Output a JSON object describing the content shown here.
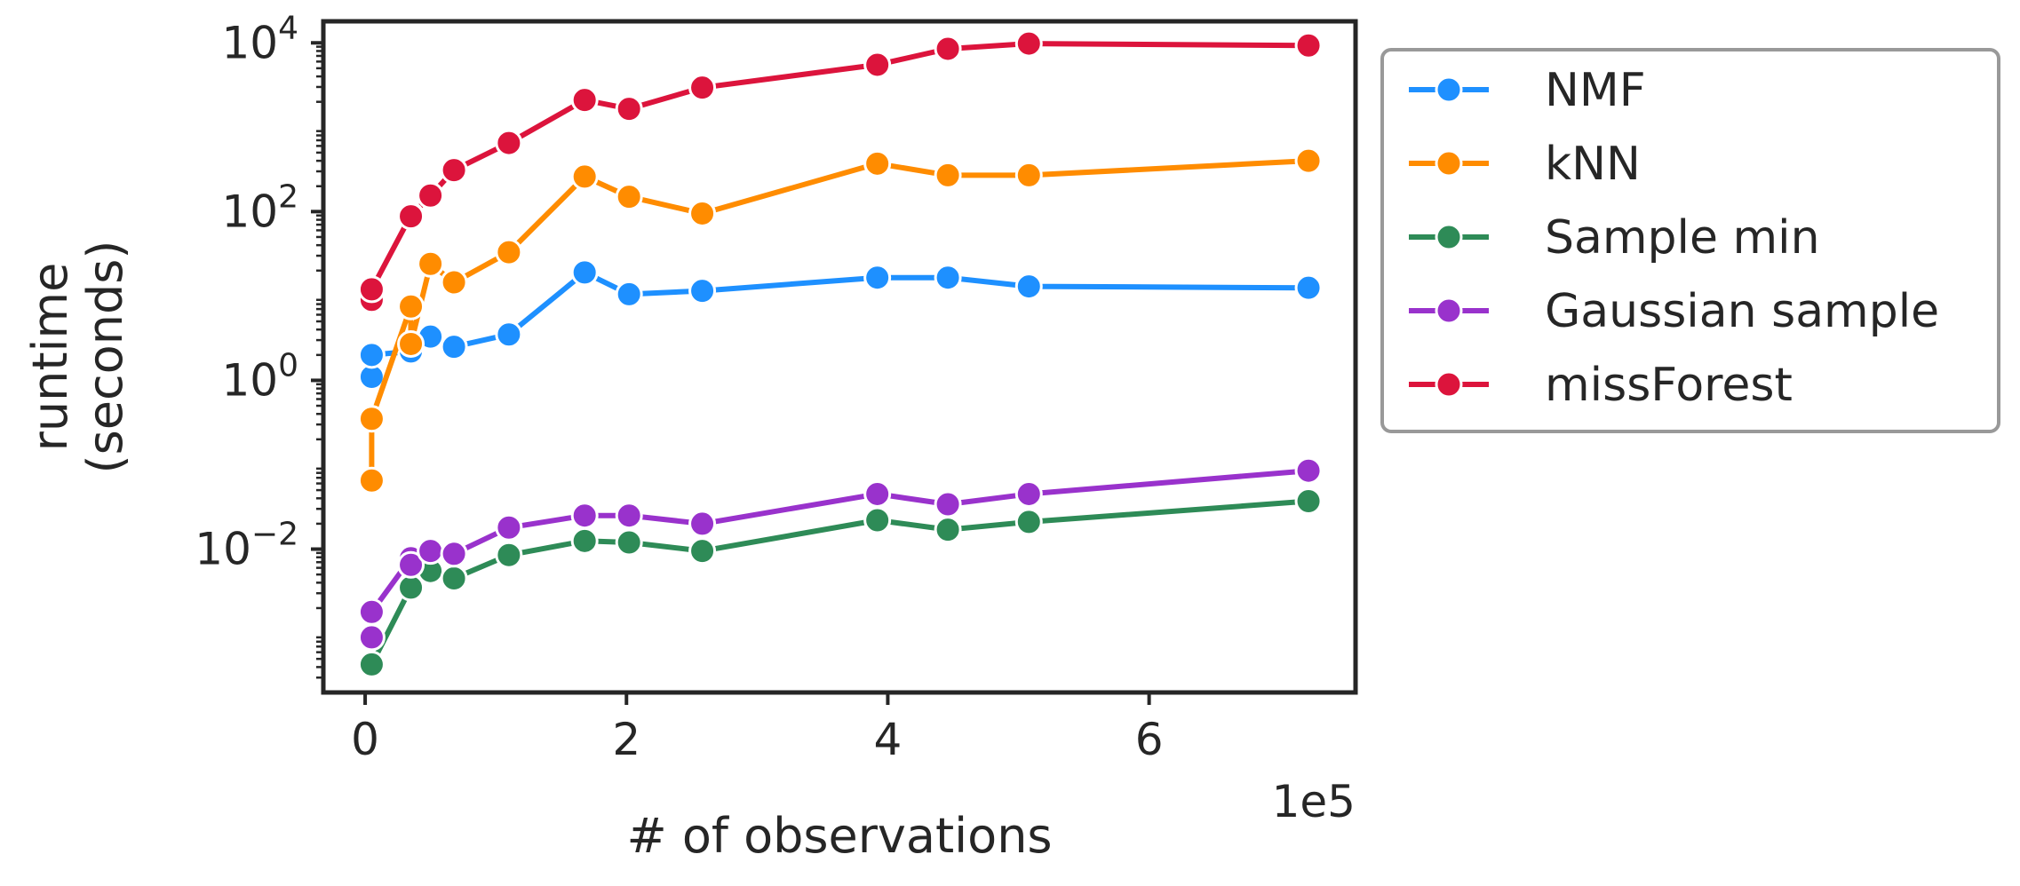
{
  "chart_data": {
    "type": "line",
    "title": "",
    "xlabel": "# of observations",
    "ylabel": [
      "runtime",
      "(seconds)"
    ],
    "x_offset_label": "1e5",
    "x_ticks": [
      {
        "value": 0,
        "label": "0"
      },
      {
        "value": 200000,
        "label": "2"
      },
      {
        "value": 400000,
        "label": "4"
      },
      {
        "value": 600000,
        "label": "6"
      }
    ],
    "y_scale": "log",
    "y_ticks": [
      {
        "value": 0.01,
        "base": "10",
        "exp": "−2"
      },
      {
        "value": 1,
        "base": "10",
        "exp": "0"
      },
      {
        "value": 100,
        "base": "10",
        "exp": "2"
      },
      {
        "value": 10000,
        "base": "10",
        "exp": "4"
      }
    ],
    "xlim": [
      -32000,
      758000
    ],
    "ylim": [
      0.0002,
      18000
    ],
    "grid": false,
    "legend_position": "outside-right",
    "marker": "circle",
    "series": [
      {
        "name": "NMF",
        "color": "#1e90ff",
        "points": [
          [
            5000,
            1.1
          ],
          [
            5000,
            2.0
          ],
          [
            35000,
            2.2
          ],
          [
            50000,
            3.3
          ],
          [
            68000,
            2.5
          ],
          [
            110000,
            3.5
          ],
          [
            168000,
            19
          ],
          [
            202000,
            10.5
          ],
          [
            258000,
            11.5
          ],
          [
            392000,
            16.5
          ],
          [
            446000,
            16.5
          ],
          [
            508000,
            13
          ],
          [
            722000,
            12.5
          ]
        ]
      },
      {
        "name": "kNN",
        "color": "#ff8c00",
        "points": [
          [
            5000,
            0.065
          ],
          [
            5000,
            0.35
          ],
          [
            35000,
            7.5
          ],
          [
            35000,
            2.7
          ],
          [
            50000,
            24
          ],
          [
            68000,
            14.5
          ],
          [
            110000,
            33
          ],
          [
            168000,
            260
          ],
          [
            202000,
            150
          ],
          [
            258000,
            95
          ],
          [
            392000,
            370
          ],
          [
            446000,
            270
          ],
          [
            508000,
            270
          ],
          [
            722000,
            400
          ]
        ]
      },
      {
        "name": "Sample min",
        "color": "#2e8b57",
        "points": [
          [
            5000,
            0.00043
          ],
          [
            35000,
            0.0035
          ],
          [
            50000,
            0.0055
          ],
          [
            68000,
            0.0045
          ],
          [
            110000,
            0.0085
          ],
          [
            168000,
            0.0125
          ],
          [
            202000,
            0.012
          ],
          [
            258000,
            0.0095
          ],
          [
            392000,
            0.022
          ],
          [
            446000,
            0.017
          ],
          [
            508000,
            0.021
          ],
          [
            722000,
            0.037
          ]
        ]
      },
      {
        "name": "Gaussian sample",
        "color": "#9932cc",
        "points": [
          [
            5000,
            0.0009
          ],
          [
            5000,
            0.0018
          ],
          [
            35000,
            0.0078
          ],
          [
            35000,
            0.0065
          ],
          [
            50000,
            0.0095
          ],
          [
            68000,
            0.0088
          ],
          [
            110000,
            0.018
          ],
          [
            168000,
            0.025
          ],
          [
            202000,
            0.025
          ],
          [
            258000,
            0.02
          ],
          [
            392000,
            0.045
          ],
          [
            446000,
            0.034
          ],
          [
            508000,
            0.045
          ],
          [
            722000,
            0.085
          ]
        ]
      },
      {
        "name": "missForest",
        "color": "#dc143c",
        "points": [
          [
            5000,
            9
          ],
          [
            5000,
            12
          ],
          [
            35000,
            90
          ],
          [
            35000,
            88
          ],
          [
            50000,
            155
          ],
          [
            68000,
            310
          ],
          [
            110000,
            650
          ],
          [
            168000,
            2100
          ],
          [
            202000,
            1650
          ],
          [
            258000,
            2950
          ],
          [
            392000,
            5500
          ],
          [
            446000,
            8500
          ],
          [
            508000,
            9800
          ],
          [
            722000,
            9300
          ]
        ]
      }
    ]
  }
}
